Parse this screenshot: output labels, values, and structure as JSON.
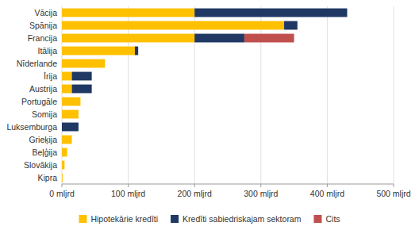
{
  "chart_data": {
    "type": "bar",
    "orientation": "horizontal",
    "stacked": true,
    "categories": [
      "Vācija",
      "Spānija",
      "Francija",
      "Itālija",
      "Nīderlande",
      "Īrija",
      "Austrija",
      "Portugāle",
      "Somija",
      "Luksemburga",
      "Grieķija",
      "Beļģija",
      "Slovākija",
      "Kipra"
    ],
    "series": [
      {
        "name": "Hipotekārie kredīti",
        "color": "#FFC000",
        "values": [
          200,
          335,
          200,
          110,
          65,
          15,
          15,
          28,
          25,
          0,
          15,
          8,
          4,
          1
        ]
      },
      {
        "name": "Kredīti sabiedriskajam sektoram",
        "color": "#1F3864",
        "values": [
          230,
          20,
          75,
          5,
          0,
          30,
          30,
          0,
          0,
          25,
          0,
          0,
          0,
          0
        ]
      },
      {
        "name": "Cits",
        "color": "#C0504D",
        "values": [
          0,
          0,
          75,
          0,
          0,
          0,
          0,
          0,
          0,
          0,
          0,
          0,
          0,
          0
        ]
      }
    ],
    "xlim": [
      0,
      500
    ],
    "xticks": [
      {
        "value": 0,
        "label": "0 mljrd"
      },
      {
        "value": 100,
        "label": "100 mljrd"
      },
      {
        "value": 200,
        "label": "200 mljrd"
      },
      {
        "value": 300,
        "label": "300 mljrd"
      },
      {
        "value": 400,
        "label": "400 mljrd"
      },
      {
        "value": 500,
        "label": "500 mljrd"
      }
    ],
    "grid": true,
    "legend": "bottom"
  }
}
